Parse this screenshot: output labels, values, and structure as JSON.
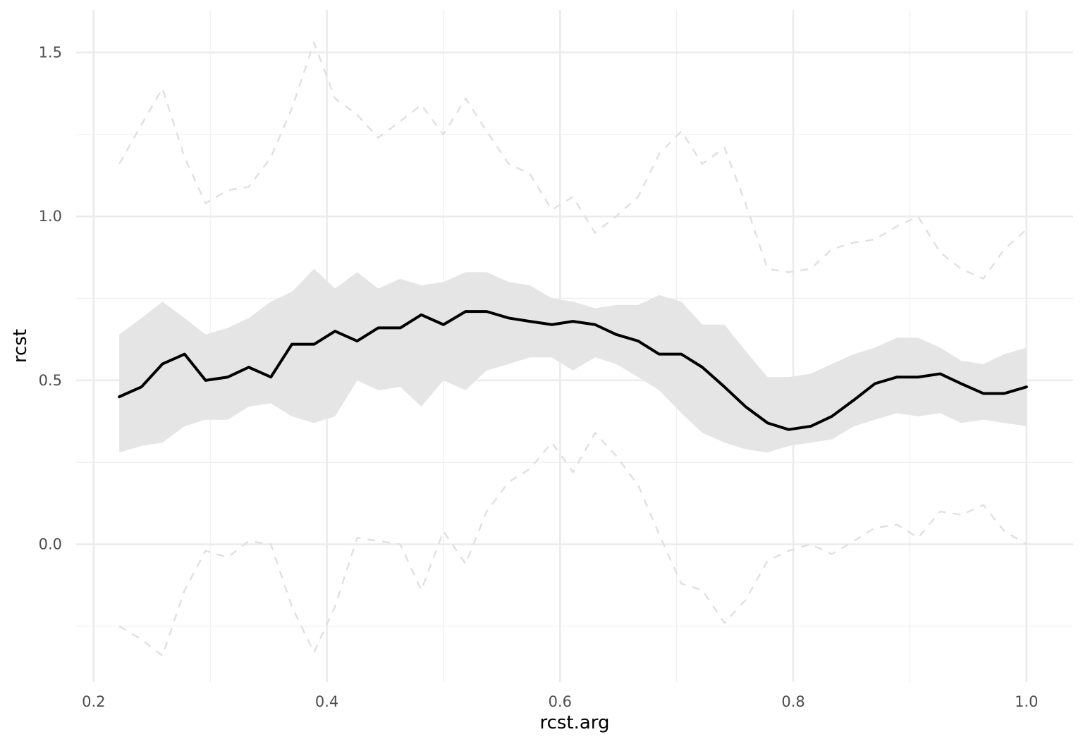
{
  "chart_data": {
    "type": "line",
    "xlabel": "rcst.arg",
    "ylabel": "rcst",
    "x_ticks": [
      "0.2",
      "0.4",
      "0.6",
      "0.8",
      "1.0"
    ],
    "y_ticks": [
      "0.0",
      "0.5",
      "1.0",
      "1.5"
    ],
    "xlim": [
      0.185,
      1.04
    ],
    "ylim": [
      -0.42,
      1.63
    ],
    "grid": true,
    "legend": "none",
    "x": [
      0.222,
      0.241,
      0.259,
      0.278,
      0.296,
      0.315,
      0.333,
      0.352,
      0.37,
      0.389,
      0.407,
      0.426,
      0.444,
      0.463,
      0.481,
      0.5,
      0.519,
      0.537,
      0.556,
      0.574,
      0.593,
      0.611,
      0.63,
      0.648,
      0.667,
      0.685,
      0.704,
      0.722,
      0.741,
      0.759,
      0.778,
      0.796,
      0.815,
      0.833,
      0.852,
      0.87,
      0.889,
      0.907,
      0.926,
      0.944,
      0.963,
      0.981,
      1.0
    ],
    "series": [
      {
        "role": "upper-dashed-envelope",
        "style": "dashed",
        "color": "#e0e0e0",
        "values": [
          1.16,
          1.28,
          1.39,
          1.18,
          1.04,
          1.08,
          1.09,
          1.18,
          1.33,
          1.53,
          1.36,
          1.31,
          1.24,
          1.29,
          1.34,
          1.25,
          1.36,
          1.26,
          1.16,
          1.13,
          1.02,
          1.06,
          0.95,
          1.0,
          1.06,
          1.19,
          1.26,
          1.16,
          1.21,
          1.04,
          0.84,
          0.83,
          0.84,
          0.9,
          0.92,
          0.93,
          0.97,
          1.0,
          0.89,
          0.84,
          0.81,
          0.9,
          0.96
        ]
      },
      {
        "role": "lower-dashed-envelope",
        "style": "dashed",
        "color": "#e0e0e0",
        "values": [
          -0.25,
          -0.29,
          -0.34,
          -0.14,
          -0.02,
          -0.04,
          0.01,
          0.0,
          -0.19,
          -0.33,
          -0.19,
          0.02,
          0.01,
          0.0,
          -0.14,
          0.04,
          -0.06,
          0.1,
          0.19,
          0.23,
          0.31,
          0.22,
          0.34,
          0.27,
          0.18,
          0.03,
          -0.12,
          -0.14,
          -0.24,
          -0.17,
          -0.05,
          -0.02,
          0.0,
          -0.03,
          0.01,
          0.05,
          0.06,
          0.02,
          0.1,
          0.09,
          0.12,
          0.04,
          0.0
        ]
      },
      {
        "role": "band-upper",
        "style": "fill",
        "color": "#e5e5e5",
        "values": [
          0.64,
          0.69,
          0.74,
          0.69,
          0.64,
          0.66,
          0.69,
          0.74,
          0.77,
          0.84,
          0.78,
          0.83,
          0.78,
          0.81,
          0.79,
          0.8,
          0.83,
          0.83,
          0.8,
          0.79,
          0.75,
          0.74,
          0.72,
          0.73,
          0.73,
          0.76,
          0.74,
          0.67,
          0.67,
          0.59,
          0.51,
          0.51,
          0.52,
          0.55,
          0.58,
          0.6,
          0.63,
          0.63,
          0.6,
          0.56,
          0.55,
          0.58,
          0.6
        ]
      },
      {
        "role": "band-lower",
        "style": "fill",
        "color": "#e5e5e5",
        "values": [
          0.28,
          0.3,
          0.31,
          0.36,
          0.38,
          0.38,
          0.42,
          0.43,
          0.39,
          0.37,
          0.39,
          0.5,
          0.47,
          0.48,
          0.42,
          0.5,
          0.47,
          0.53,
          0.55,
          0.57,
          0.57,
          0.53,
          0.57,
          0.55,
          0.51,
          0.47,
          0.4,
          0.34,
          0.31,
          0.29,
          0.28,
          0.3,
          0.31,
          0.32,
          0.36,
          0.38,
          0.4,
          0.39,
          0.4,
          0.37,
          0.38,
          0.37,
          0.36
        ]
      },
      {
        "role": "main-line",
        "style": "solid",
        "color": "#000000",
        "values": [
          0.45,
          0.48,
          0.55,
          0.58,
          0.5,
          0.51,
          0.54,
          0.51,
          0.61,
          0.61,
          0.65,
          0.62,
          0.66,
          0.66,
          0.7,
          0.67,
          0.71,
          0.71,
          0.69,
          0.68,
          0.67,
          0.68,
          0.67,
          0.64,
          0.62,
          0.58,
          0.58,
          0.54,
          0.48,
          0.42,
          0.37,
          0.35,
          0.36,
          0.39,
          0.44,
          0.49,
          0.51,
          0.51,
          0.52,
          0.49,
          0.46,
          0.46,
          0.48
        ]
      }
    ]
  }
}
